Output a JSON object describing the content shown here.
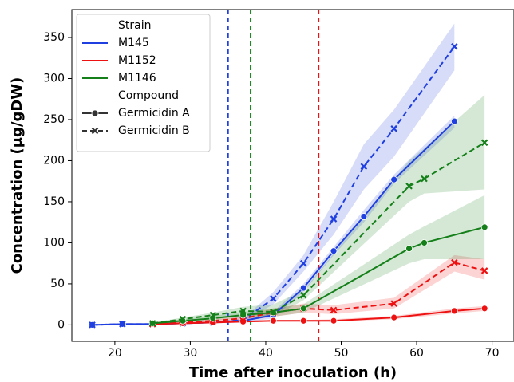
{
  "chart_data": {
    "type": "line",
    "x_label": "Time after inoculation (h)",
    "y_label": "Concentration (µg/gDW)",
    "xlim": [
      14.3,
      72.9
    ],
    "ylim": [
      -20,
      384
    ],
    "xticks": [
      20,
      30,
      40,
      50,
      60,
      70
    ],
    "yticks": [
      0,
      50,
      100,
      150,
      200,
      250,
      300,
      350
    ],
    "legend": {
      "title_1": "Strain",
      "title_2": "Compound",
      "position": "upper-left"
    },
    "strains": [
      {
        "name": "M145",
        "color": "#1f3fe0"
      },
      {
        "name": "M1152",
        "color": "#ee1111"
      },
      {
        "name": "M1146",
        "color": "#15801a"
      }
    ],
    "compounds": [
      {
        "name": "Germicidin A",
        "marker": "circle",
        "dashed": false
      },
      {
        "name": "Germicidin B",
        "marker": "x",
        "dashed": true
      }
    ],
    "vlines": [
      {
        "x": 35,
        "color": "#1f3fe0"
      },
      {
        "x": 38,
        "color": "#15801a"
      },
      {
        "x": 47,
        "color": "#ee1111"
      }
    ],
    "series": [
      {
        "strain": 0,
        "compound": 0,
        "x": [
          17,
          21,
          25,
          29,
          33,
          37,
          41,
          45,
          49,
          53,
          57,
          65
        ],
        "values": [
          0,
          1,
          1,
          2,
          3,
          5,
          12,
          45,
          90,
          132,
          177,
          248
        ],
        "lower": [
          0,
          0,
          0,
          1,
          2,
          3,
          8,
          40,
          85,
          125,
          172,
          240
        ],
        "upper": [
          1,
          2,
          2,
          3,
          4,
          7,
          16,
          50,
          95,
          140,
          183,
          255
        ]
      },
      {
        "strain": 0,
        "compound": 1,
        "x": [
          17,
          21,
          25,
          29,
          33,
          37,
          41,
          45,
          49,
          53,
          57,
          65
        ],
        "values": [
          0,
          1,
          1,
          2,
          3,
          6,
          32,
          75,
          129,
          193,
          239,
          339
        ],
        "lower": [
          0,
          0,
          0,
          1,
          2,
          4,
          25,
          65,
          110,
          165,
          205,
          310
        ],
        "upper": [
          1,
          2,
          2,
          3,
          4,
          8,
          40,
          85,
          150,
          220,
          262,
          367
        ]
      },
      {
        "strain": 1,
        "compound": 0,
        "x": [
          25,
          29,
          33,
          37,
          41,
          45,
          49,
          57,
          65,
          69
        ],
        "values": [
          1,
          2,
          3,
          4,
          5,
          5,
          5,
          9,
          17,
          20
        ],
        "lower": [
          0,
          1,
          2,
          3,
          4,
          4,
          4,
          7,
          14,
          17
        ],
        "upper": [
          2,
          3,
          4,
          5,
          6,
          6,
          7,
          11,
          20,
          23
        ]
      },
      {
        "strain": 1,
        "compound": 1,
        "x": [
          25,
          29,
          33,
          37,
          41,
          45,
          49,
          57,
          65,
          69
        ],
        "values": [
          1,
          3,
          5,
          8,
          15,
          20,
          18,
          26,
          76,
          66
        ],
        "lower": [
          0,
          1,
          3,
          5,
          10,
          15,
          13,
          20,
          65,
          55
        ],
        "upper": [
          3,
          6,
          8,
          12,
          20,
          26,
          24,
          33,
          85,
          80
        ]
      },
      {
        "strain": 2,
        "compound": 0,
        "x": [
          25,
          29,
          33,
          37,
          41,
          45,
          59,
          61,
          69
        ],
        "values": [
          2,
          5,
          8,
          12,
          15,
          20,
          93,
          100,
          119
        ],
        "lower": [
          1,
          3,
          5,
          8,
          10,
          15,
          75,
          80,
          80
        ],
        "upper": [
          3,
          7,
          11,
          16,
          20,
          25,
          110,
          120,
          158
        ]
      },
      {
        "strain": 2,
        "compound": 1,
        "x": [
          25,
          29,
          33,
          37,
          41,
          45,
          59,
          61,
          69
        ],
        "values": [
          2,
          7,
          12,
          17,
          16,
          36,
          169,
          178,
          222
        ],
        "lower": [
          1,
          5,
          9,
          12,
          10,
          30,
          150,
          160,
          165
        ],
        "upper": [
          3,
          9,
          15,
          22,
          25,
          42,
          200,
          215,
          280
        ]
      }
    ]
  }
}
